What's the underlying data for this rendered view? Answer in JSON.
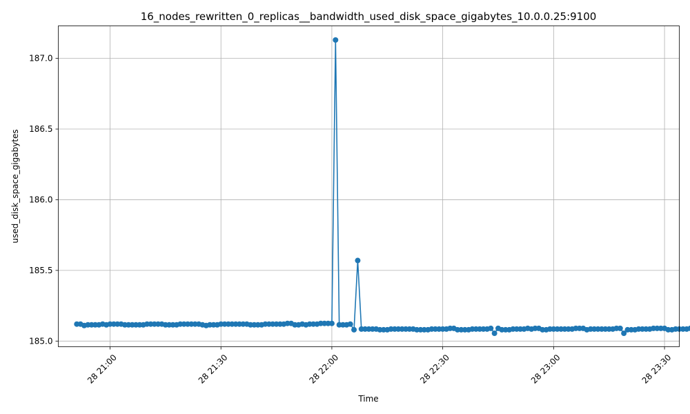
{
  "chart_data": {
    "type": "line",
    "title": "16_nodes_rewritten_0_replicas__bandwidth_used_disk_space_gigabytes_10.0.0.25:9100",
    "xlabel": "Time",
    "ylabel": "used_disk_space_gigabytes",
    "ylim": [
      184.96,
      187.23
    ],
    "xlim": [
      "2023-01-28 20:46:00",
      "2023-01-28 23:34:00"
    ],
    "grid": true,
    "line_color": "#1f77b4",
    "x_ticks": [
      {
        "t": "2023-01-28 21:00",
        "label": "28 21:00"
      },
      {
        "t": "2023-01-28 21:30",
        "label": "28 21:30"
      },
      {
        "t": "2023-01-28 22:00",
        "label": "28 22:00"
      },
      {
        "t": "2023-01-28 22:30",
        "label": "28 22:30"
      },
      {
        "t": "2023-01-28 23:00",
        "label": "28 23:00"
      },
      {
        "t": "2023-01-28 23:30",
        "label": "28 23:30"
      }
    ],
    "y_ticks": [
      {
        "v": 185.0,
        "label": "185.0"
      },
      {
        "v": 185.5,
        "label": "185.5"
      },
      {
        "v": 186.0,
        "label": "186.0"
      },
      {
        "v": 186.5,
        "label": "186.5"
      },
      {
        "v": 187.0,
        "label": "187.0"
      }
    ],
    "series": [
      {
        "x_start": "2023-01-28 20:51:00",
        "x_step_minutes": 1,
        "values": [
          185.12,
          185.12,
          185.11,
          185.115,
          185.115,
          185.115,
          185.115,
          185.12,
          185.115,
          185.12,
          185.12,
          185.12,
          185.12,
          185.115,
          185.115,
          185.115,
          185.115,
          185.115,
          185.115,
          185.12,
          185.12,
          185.12,
          185.12,
          185.12,
          185.115,
          185.115,
          185.115,
          185.115,
          185.12,
          185.12,
          185.12,
          185.12,
          185.12,
          185.12,
          185.115,
          185.11,
          185.115,
          185.115,
          185.115,
          185.12,
          185.12,
          185.12,
          185.12,
          185.12,
          185.12,
          185.12,
          185.12,
          185.115,
          185.115,
          185.115,
          185.115,
          185.12,
          185.12,
          185.12,
          185.12,
          185.12,
          185.12,
          185.125,
          185.125,
          185.115,
          185.115,
          185.12,
          185.115,
          185.12,
          185.12,
          185.12,
          185.125,
          185.125,
          185.125,
          185.125,
          187.13,
          185.115,
          185.115,
          185.115,
          185.12,
          185.08,
          185.57,
          185.085,
          185.085,
          185.085,
          185.085,
          185.085,
          185.08,
          185.08,
          185.08,
          185.085,
          185.085,
          185.085,
          185.085,
          185.085,
          185.085,
          185.085,
          185.08,
          185.08,
          185.08,
          185.08,
          185.085,
          185.085,
          185.085,
          185.085,
          185.085,
          185.09,
          185.09,
          185.08,
          185.08,
          185.08,
          185.08,
          185.085,
          185.085,
          185.085,
          185.085,
          185.085,
          185.09,
          185.055,
          185.09,
          185.08,
          185.08,
          185.08,
          185.085,
          185.085,
          185.085,
          185.085,
          185.09,
          185.085,
          185.09,
          185.09,
          185.08,
          185.08,
          185.085,
          185.085,
          185.085,
          185.085,
          185.085,
          185.085,
          185.085,
          185.09,
          185.09,
          185.09,
          185.08,
          185.085,
          185.085,
          185.085,
          185.085,
          185.085,
          185.085,
          185.085,
          185.09,
          185.09,
          185.055,
          185.08,
          185.08,
          185.08,
          185.085,
          185.085,
          185.085,
          185.085,
          185.09,
          185.09,
          185.09,
          185.09,
          185.08,
          185.08,
          185.085,
          185.085,
          185.085,
          185.085,
          185.09,
          185.09,
          185.085
        ]
      }
    ]
  }
}
